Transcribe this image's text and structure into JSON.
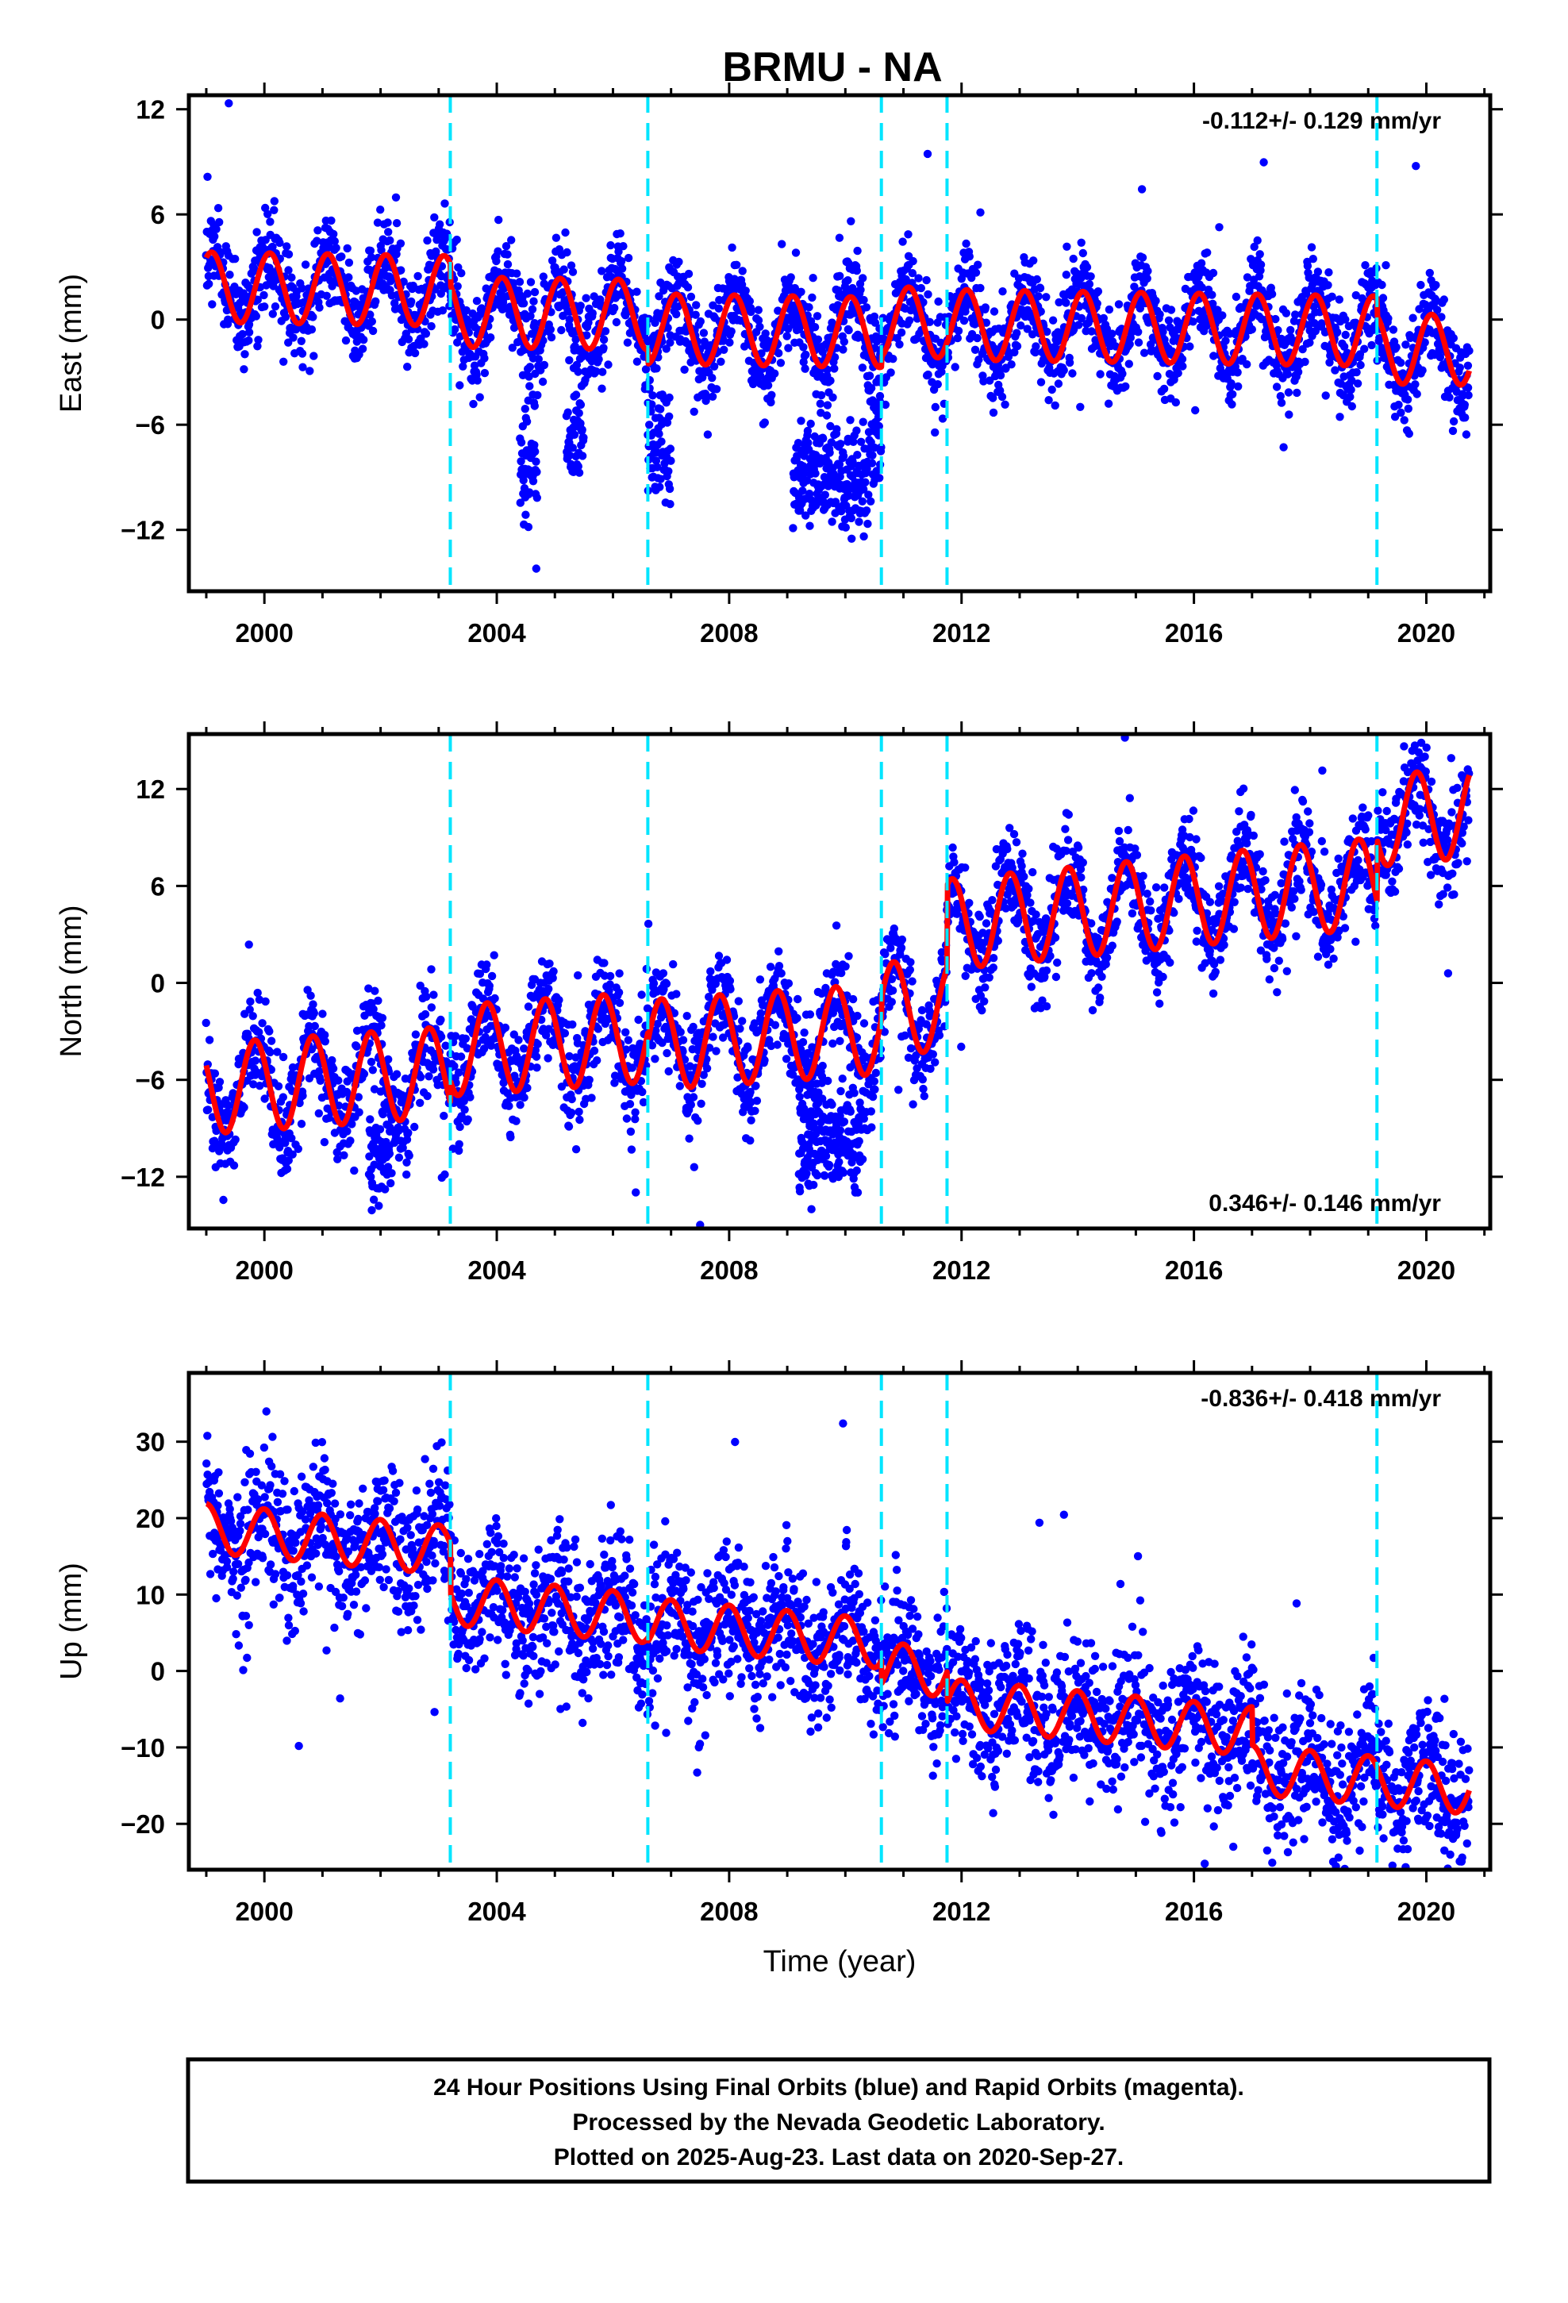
{
  "title": "BRMU - NA",
  "footer": {
    "lines": [
      "24 Hour Positions Using Final Orbits (blue) and Rapid Orbits (magenta).",
      "Processed by the Nevada Geodetic Laboratory.",
      "Plotted on 2025-Aug-23. Last data on 2020-Sep-27."
    ]
  },
  "colors": {
    "points": "#0000ff",
    "model": "#ff0000",
    "steps": "#00e5ff",
    "frame": "#000000"
  },
  "chart_data": [
    {
      "type": "scatter",
      "component": "east",
      "ylabel": "East (mm)",
      "xlabel": "",
      "xlim": [
        1998.7,
        2021.1
      ],
      "ylim": [
        -15.5,
        12.8
      ],
      "xticks": [
        2000,
        2004,
        2008,
        2012,
        2016,
        2020
      ],
      "yticks": [
        -12,
        -6,
        0,
        6,
        12
      ],
      "rate": "-0.112+/- 0.129 mm/yr",
      "rate_position": "top-right",
      "step_lines": [
        2003.2,
        2006.6,
        2010.62,
        2011.75,
        2019.15
      ],
      "data_range": [
        1999.0,
        2020.74
      ],
      "model": {
        "amplitude": 2.0,
        "phase": 1.0,
        "spread": 1.4,
        "segments": [
          {
            "from": 1999.0,
            "to": 2003.2,
            "a": 1.3,
            "b": -0.05
          },
          {
            "from": 2003.2,
            "to": 2006.6,
            "a": 0.1,
            "b": -0.05
          },
          {
            "from": 2006.6,
            "to": 2010.62,
            "a": -0.7,
            "b": -0.05
          },
          {
            "from": 2010.62,
            "to": 2011.75,
            "a": -0.1,
            "b": -0.05
          },
          {
            "from": 2011.75,
            "to": 2019.15,
            "a": -0.2,
            "b": -0.05
          },
          {
            "from": 2019.15,
            "to": 2020.74,
            "a": -1.2,
            "b": -0.05
          }
        ]
      },
      "outlier_clusters": [
        {
          "from": 2004.4,
          "to": 2004.7,
          "mean": -8.5,
          "spread": 1.5
        },
        {
          "from": 2005.2,
          "to": 2005.5,
          "mean": -7.0,
          "spread": 1.2
        },
        {
          "from": 2006.6,
          "to": 2007.0,
          "mean": -7.0,
          "spread": 1.8
        },
        {
          "from": 2009.1,
          "to": 2010.4,
          "mean": -9.0,
          "spread": 1.5
        },
        {
          "from": 2010.4,
          "to": 2010.62,
          "mean": -7.0,
          "spread": 1.5
        }
      ]
    },
    {
      "type": "scatter",
      "component": "north",
      "ylabel": "North (mm)",
      "xlabel": "",
      "xlim": [
        1998.7,
        2021.1
      ],
      "ylim": [
        -15.2,
        15.4
      ],
      "xticks": [
        2000,
        2004,
        2008,
        2012,
        2016,
        2020
      ],
      "yticks": [
        -12,
        -6,
        0,
        6,
        12
      ],
      "rate": "0.346+/- 0.146 mm/yr",
      "rate_position": "bottom-right",
      "step_lines": [
        2003.2,
        2006.6,
        2010.62,
        2011.75,
        2019.15
      ],
      "data_range": [
        1999.0,
        2020.74
      ],
      "model": {
        "amplitude": 2.8,
        "phase": 2.6,
        "spread": 1.6,
        "segments": [
          {
            "from": 1999.0,
            "to": 2003.2,
            "a": -3.8,
            "b": 0.25
          },
          {
            "from": 2003.2,
            "to": 2006.6,
            "a": -2.5,
            "b": 0.25
          },
          {
            "from": 2006.6,
            "to": 2010.62,
            "a": -3.0,
            "b": 0.25
          },
          {
            "from": 2010.62,
            "to": 2011.75,
            "a": -1.5,
            "b": 0.0
          },
          {
            "from": 2011.75,
            "to": 2019.15,
            "a": 3.0,
            "b": 0.35
          },
          {
            "from": 2019.15,
            "to": 2020.74,
            "a": 6.8,
            "b": 0.35
          }
        ]
      },
      "outlier_clusters": [
        {
          "from": 2009.2,
          "to": 2010.3,
          "mean": -10.0,
          "spread": 1.6
        },
        {
          "from": 2001.8,
          "to": 2002.2,
          "mean": -10.5,
          "spread": 1.5
        }
      ]
    },
    {
      "type": "scatter",
      "component": "up",
      "ylabel": "Up (mm)",
      "xlabel": "Time (year)",
      "xlim": [
        1998.7,
        2021.1
      ],
      "ylim": [
        -26,
        39
      ],
      "xticks": [
        2000,
        2004,
        2008,
        2012,
        2016,
        2020
      ],
      "yticks": [
        -20,
        -10,
        0,
        10,
        20,
        30
      ],
      "rate": "-0.836+/- 0.418 mm/yr",
      "rate_position": "top-right",
      "step_lines": [
        2003.2,
        2006.6,
        2010.62,
        2011.75,
        2019.15
      ],
      "data_range": [
        1999.0,
        2020.74
      ],
      "model": {
        "amplitude": 3.2,
        "phase": 1.6,
        "spread": 4.5,
        "segments": [
          {
            "from": 1999.0,
            "to": 2003.2,
            "a": 11.0,
            "b": -0.7
          },
          {
            "from": 2003.2,
            "to": 2006.6,
            "a": 4.5,
            "b": -0.7
          },
          {
            "from": 2006.6,
            "to": 2010.62,
            "a": 4.0,
            "b": -0.7
          },
          {
            "from": 2010.62,
            "to": 2011.75,
            "a": 1.0,
            "b": -0.7
          },
          {
            "from": 2011.75,
            "to": 2017.0,
            "a": -3.0,
            "b": -0.7
          },
          {
            "from": 2017.0,
            "to": 2020.74,
            "a": -8.0,
            "b": -0.7
          }
        ]
      },
      "outlier_clusters": []
    }
  ]
}
